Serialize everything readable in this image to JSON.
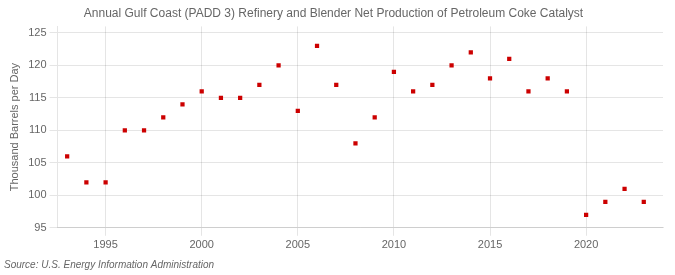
{
  "chart_data": {
    "type": "scatter",
    "title": "Annual Gulf Coast (PADD 3) Refinery and Blender Net Production of Petroleum Coke Catalyst",
    "ylabel": "Thousand Barrels per Day",
    "source": "Source: U.S. Energy Information Administration",
    "x": [
      1993,
      1994,
      1995,
      1996,
      1997,
      1998,
      1999,
      2000,
      2001,
      2002,
      2003,
      2004,
      2005,
      2006,
      2007,
      2008,
      2009,
      2010,
      2011,
      2012,
      2013,
      2014,
      2015,
      2016,
      2017,
      2018,
      2019,
      2020,
      2021,
      2022,
      2023
    ],
    "values": [
      106,
      102,
      102,
      110,
      110,
      112,
      114,
      116,
      115,
      115,
      117,
      120,
      113,
      123,
      117,
      108,
      112,
      119,
      116,
      117,
      120,
      122,
      118,
      121,
      116,
      118,
      116,
      97,
      99,
      101,
      99
    ],
    "color": "#cc0000",
    "marker": "square",
    "xlim": [
      1992.5,
      2024
    ],
    "xticks": [
      1995,
      2000,
      2005,
      2010,
      2015,
      2020
    ],
    "ylim": [
      95,
      126
    ],
    "yticks": [
      95,
      100,
      105,
      110,
      115,
      120,
      125
    ],
    "grid": true
  }
}
